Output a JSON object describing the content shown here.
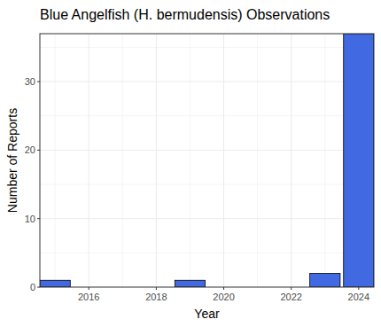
{
  "chart_data": {
    "type": "bar",
    "title": "Blue Angelfish (H. bermudensis) Observations",
    "x_label": "Year",
    "y_label": "Number of Reports",
    "x": [
      2015,
      2019,
      2023,
      2024
    ],
    "values": [
      1,
      1,
      2,
      37
    ],
    "color": "#4169e1",
    "xlim": [
      2014.55,
      2024.45
    ],
    "xticks": [
      2016,
      2018,
      2020,
      2022,
      2024
    ],
    "ylim": [
      0,
      37
    ],
    "yticks": [
      0,
      10,
      20,
      30
    ],
    "grid": true
  }
}
